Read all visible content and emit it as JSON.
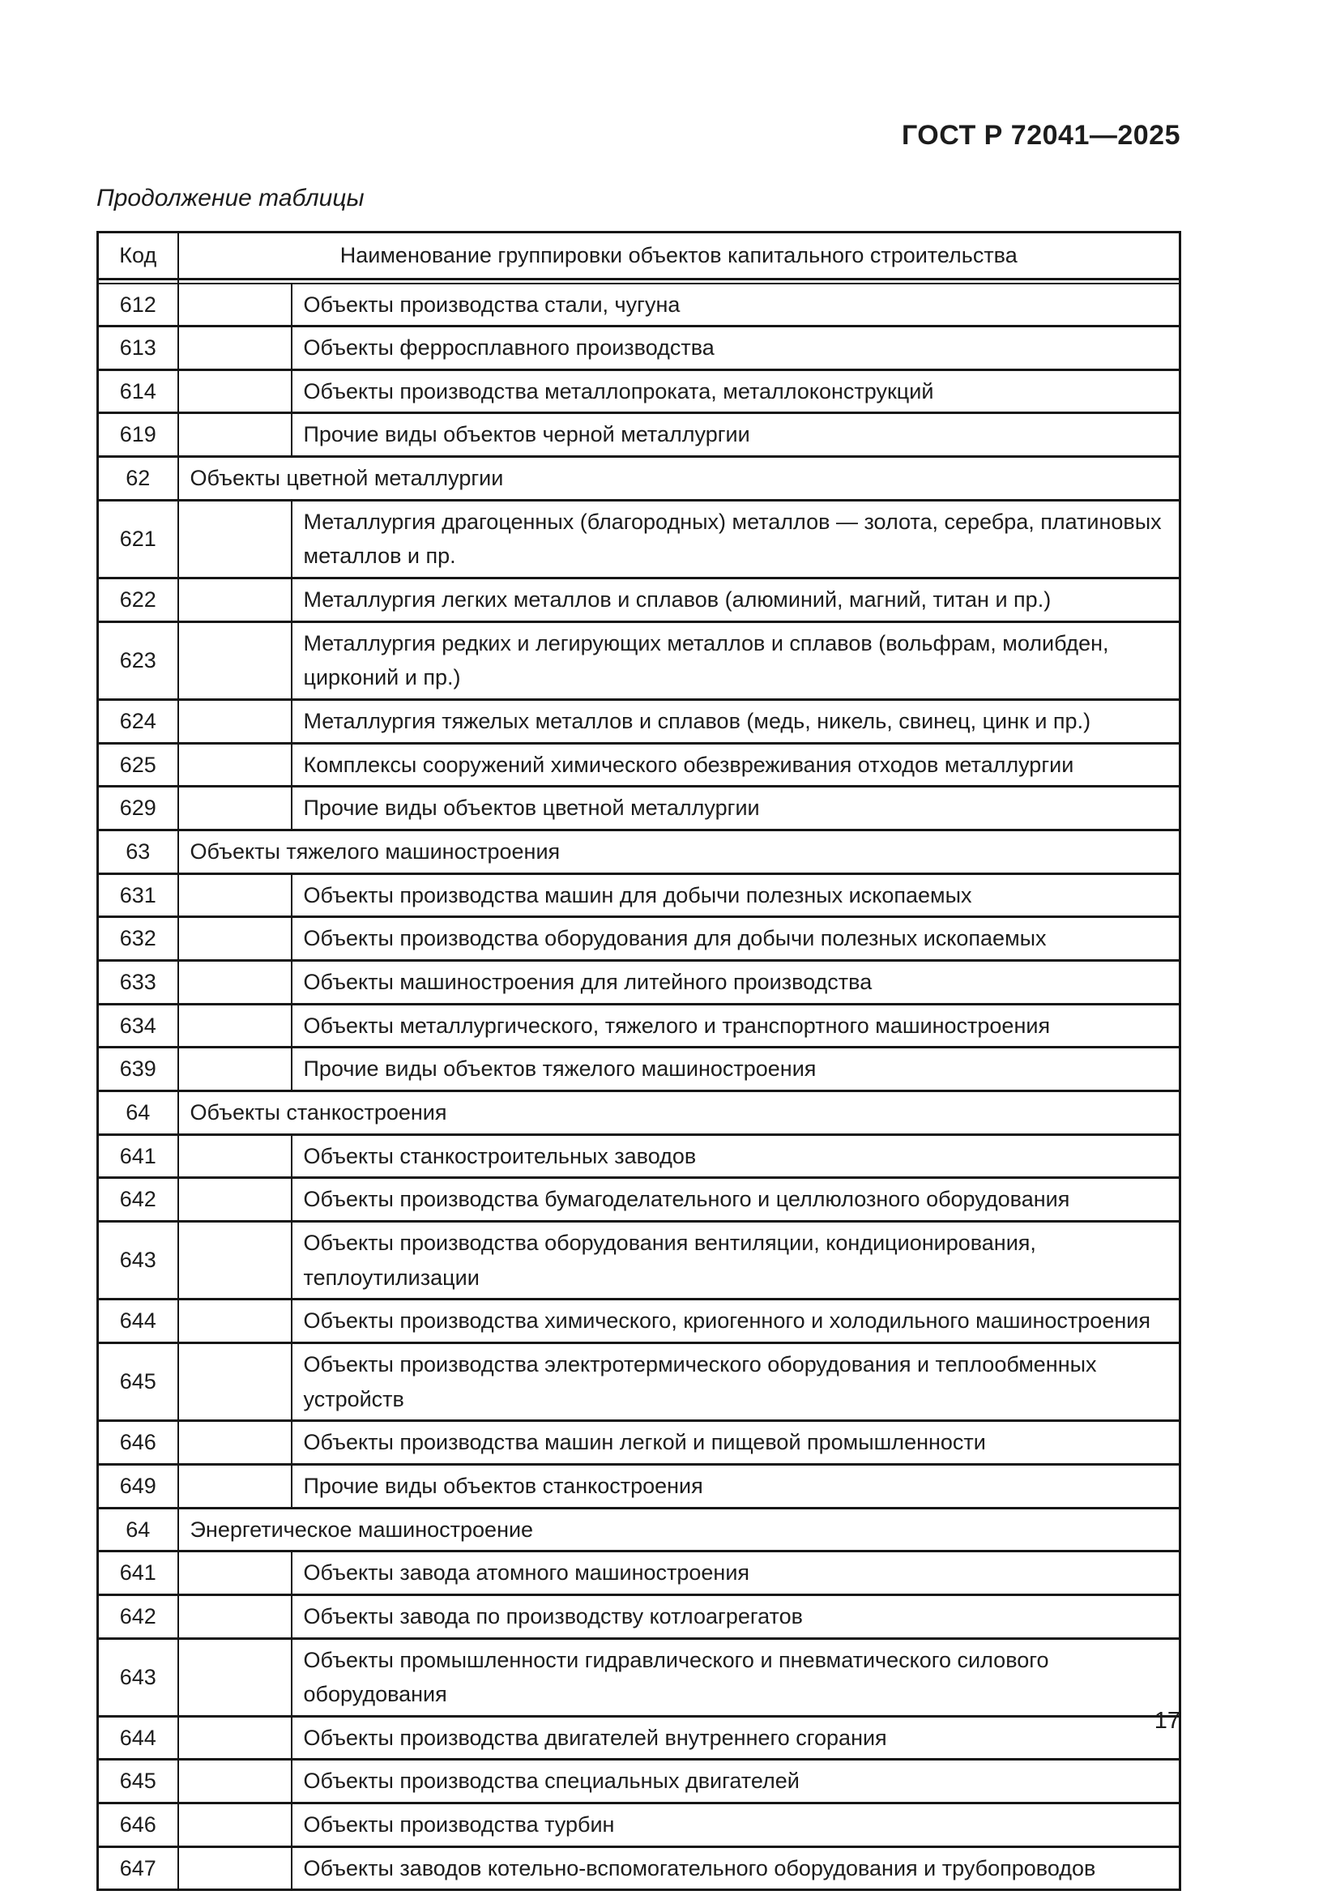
{
  "page": {
    "doc_header": "ГОСТ Р 72041—2025",
    "table_caption": "Продолжение таблицы",
    "page_number": "17"
  },
  "table": {
    "header": {
      "code": "Код",
      "name": "Наименование группировки объектов капитального строительства"
    },
    "rows": [
      {
        "code": "612",
        "level": 3,
        "name": "Объекты производства стали, чугуна"
      },
      {
        "code": "613",
        "level": 3,
        "name": "Объекты ферросплавного производства"
      },
      {
        "code": "614",
        "level": 3,
        "name": "Объекты производства металлопроката, металлоконструкций"
      },
      {
        "code": "619",
        "level": 3,
        "name": "Прочие виды объектов черной металлургии"
      },
      {
        "code": "62",
        "level": 2,
        "name": "Объекты цветной металлургии"
      },
      {
        "code": "621",
        "level": 3,
        "name": "Металлургия драгоценных (благородных) металлов — золота, серебра, платиновых металлов и пр."
      },
      {
        "code": "622",
        "level": 3,
        "name": "Металлургия легких металлов и сплавов (алюминий, магний, титан и пр.)"
      },
      {
        "code": "623",
        "level": 3,
        "name": "Металлургия редких и легирующих металлов и сплавов (вольфрам, молибден, цирконий и пр.)"
      },
      {
        "code": "624",
        "level": 3,
        "name": "Металлургия тяжелых металлов и сплавов (медь, никель, свинец, цинк и пр.)"
      },
      {
        "code": "625",
        "level": 3,
        "name": "Комплексы сооружений химического обезвреживания отходов металлургии"
      },
      {
        "code": "629",
        "level": 3,
        "name": "Прочие виды объектов цветной металлургии"
      },
      {
        "code": "63",
        "level": 2,
        "name": "Объекты тяжелого машиностроения"
      },
      {
        "code": "631",
        "level": 3,
        "name": "Объекты производства машин для добычи полезных ископаемых"
      },
      {
        "code": "632",
        "level": 3,
        "name": "Объекты производства оборудования для добычи полезных ископаемых"
      },
      {
        "code": "633",
        "level": 3,
        "name": "Объекты машиностроения для литейного производства"
      },
      {
        "code": "634",
        "level": 3,
        "name": "Объекты металлургического, тяжелого и транспортного машиностроения"
      },
      {
        "code": "639",
        "level": 3,
        "name": "Прочие виды объектов тяжелого машиностроения"
      },
      {
        "code": "64",
        "level": 2,
        "name": "Объекты станкостроения"
      },
      {
        "code": "641",
        "level": 3,
        "name": "Объекты станкостроительных заводов"
      },
      {
        "code": "642",
        "level": 3,
        "name": "Объекты производства бумагоделательного и целлюлозного оборудования"
      },
      {
        "code": "643",
        "level": 3,
        "name": "Объекты производства оборудования вентиляции, кондиционирования, теплоутилизации"
      },
      {
        "code": "644",
        "level": 3,
        "name": "Объекты производства химического, криогенного и холодильного машиностроения"
      },
      {
        "code": "645",
        "level": 3,
        "name": "Объекты производства электротермического оборудования и теплообменных устройств"
      },
      {
        "code": "646",
        "level": 3,
        "name": "Объекты производства машин легкой и пищевой промышленности"
      },
      {
        "code": "649",
        "level": 3,
        "name": "Прочие виды объектов станкостроения"
      },
      {
        "code": "64",
        "level": 2,
        "name": "Энергетическое машиностроение"
      },
      {
        "code": "641",
        "level": 3,
        "name": "Объекты завода атомного машиностроения"
      },
      {
        "code": "642",
        "level": 3,
        "name": "Объекты завода по производству котлоагрегатов"
      },
      {
        "code": "643",
        "level": 3,
        "name": "Объекты промышленности гидравлического и пневматического силового оборудования"
      },
      {
        "code": "644",
        "level": 3,
        "name": "Объекты производства двигателей внутреннего сгорания"
      },
      {
        "code": "645",
        "level": 3,
        "name": "Объекты производства специальных двигателей"
      },
      {
        "code": "646",
        "level": 3,
        "name": "Объекты производства турбин"
      },
      {
        "code": "647",
        "level": 3,
        "name": "Объекты заводов котельно-вспомогательного оборудования и трубопроводов"
      }
    ]
  }
}
